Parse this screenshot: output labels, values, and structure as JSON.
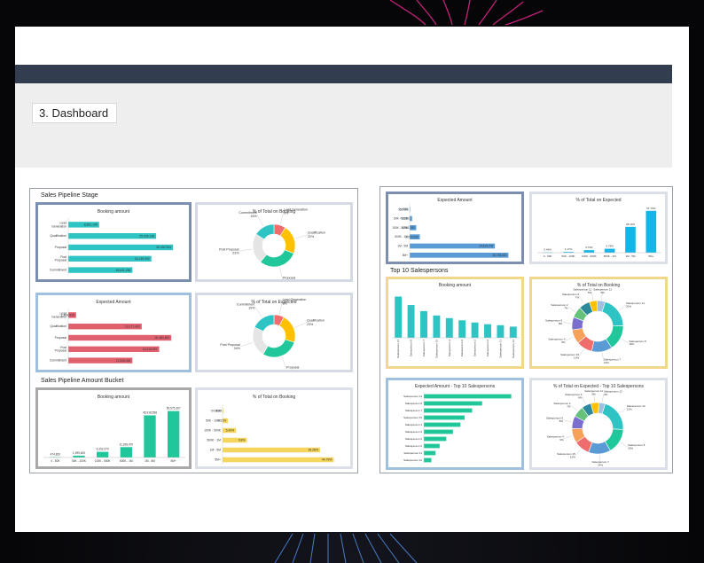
{
  "slide_title": "3. Dashboard",
  "colors": {
    "teal": "#2ec4c4",
    "red": "#e0606e",
    "green": "#1fc79a",
    "gold": "#f6d55c",
    "blue": "#5b9bd5",
    "cyan": "#14b6e8",
    "nav": "#323e4f"
  },
  "left": {
    "section1": "Sales Pipeline Stage",
    "section2": "Sales Pipeline Amount Bucket"
  },
  "right": {
    "section1": "Top 10 Salespersons"
  },
  "chart_data": [
    {
      "id": "booking_by_stage",
      "type": "bar",
      "orientation": "horizontal",
      "title": "Booking amount",
      "categories": [
        "Lead Generation",
        "Qualification",
        "Proposal",
        "Post Proposal",
        "Commitment"
      ],
      "values": [
        8961145,
        25535136,
        30432904,
        24145902,
        18641256
      ],
      "labels": [
        "8,961,145",
        "25,535,136",
        "30,432,904",
        "24,145,902",
        "18,641,256"
      ],
      "xlim": [
        0,
        34000000
      ]
    },
    {
      "id": "pct_booking_by_stage",
      "type": "pie",
      "donut": true,
      "title": "% of Total on Booking",
      "slices": [
        {
          "label": "Lead Generation",
          "pct": "9%",
          "value": 9,
          "color": "#f06d6d"
        },
        {
          "label": "Qualification",
          "pct": "22%",
          "value": 22,
          "color": "#ffc000"
        },
        {
          "label": "Proposal",
          "pct": "30%",
          "value": 30,
          "color": "#1fc79a"
        },
        {
          "label": "Post Proposal",
          "pct": "23%",
          "value": 23,
          "color": "#e5e5e5"
        },
        {
          "label": "Commitment",
          "pct": "16%",
          "value": 16,
          "color": "#2ec4c4"
        }
      ]
    },
    {
      "id": "expected_by_stage",
      "type": "bar",
      "orientation": "horizontal",
      "title": "Expected Amount",
      "categories": [
        "Lead Generation",
        "Qualification",
        "Proposal",
        "Post Proposal",
        "Commitment"
      ],
      "values": [
        1408615,
        13177402,
        18480363,
        16316997,
        11505045
      ],
      "labels": [
        "1,408,615",
        "13,177,402",
        "18,480,363",
        "16,316,997",
        "11,505,045"
      ],
      "xlim": [
        0,
        21000000
      ]
    },
    {
      "id": "pct_expected_by_stage",
      "type": "pie",
      "donut": true,
      "title": "% of Total on Expected",
      "slices": [
        {
          "label": "Lead Generation",
          "pct": "8%",
          "value": 8,
          "color": "#f06d6d"
        },
        {
          "label": "Qualification",
          "pct": "23%",
          "value": 23,
          "color": "#ffc000"
        },
        {
          "label": "Proposal",
          "pct": "30%",
          "value": 30,
          "color": "#1fc79a"
        },
        {
          "label": "Post Proposal",
          "pct": "24%",
          "value": 24,
          "color": "#e5e5e5"
        },
        {
          "label": "Commitment",
          "pct": "19%",
          "value": 19,
          "color": "#2ec4c4"
        }
      ]
    },
    {
      "id": "booking_by_bucket",
      "type": "bar",
      "orientation": "vertical",
      "title": "Booking amount",
      "categories": [
        "0 - 50K",
        "50K - 100K",
        "100K - 500K",
        "500K - 1M",
        "1M - 5M",
        "5M+"
      ],
      "values": [
        474820,
        1999620,
        6152370,
        11298470,
        45918558,
        50575307
      ],
      "labels": [
        "474,820",
        "1,999,620",
        "6,152,370",
        "11,298,470",
        "45,918,558",
        "50,575,307"
      ],
      "ylim": [
        0,
        56000000
      ]
    },
    {
      "id": "pct_booking_by_bucket",
      "type": "bar",
      "orientation": "horizontal",
      "title": "% of Total on Booking",
      "categories": [
        "0 - 50K",
        "50K - 100K",
        "100K - 500K",
        "500K - 1M",
        "1M - 5M",
        "5M+"
      ],
      "values": [
        0.41,
        2.15,
        5.43,
        9.8,
        39.28,
        44.79
      ],
      "labels": [
        "0.41%",
        "2.15%",
        "5.43%",
        "9.8%",
        "39.28%",
        "44.79%"
      ],
      "xlim": [
        0,
        50
      ]
    },
    {
      "id": "expected_by_bucket",
      "type": "bar",
      "orientation": "horizontal",
      "title": "Expected Amount",
      "categories": [
        "0 - 50K",
        "50K - 100K",
        "100K - 500K",
        "500K - 1M",
        "1M - 5M",
        "5M+"
      ],
      "values": [
        155183,
        713861,
        1916100,
        2976630,
        24814700,
        28738800
      ],
      "labels": [
        "155,183",
        "713,861",
        "1,916,100",
        "2,976,630",
        "24,814,700",
        "28,738,800"
      ],
      "xlim": [
        0,
        32000000
      ]
    },
    {
      "id": "pct_expected_by_bucket",
      "type": "bar",
      "orientation": "vertical",
      "title": "% of Total on Expected",
      "categories": [
        "0 - 50K",
        "50K - 100K",
        "100K - 500K",
        "500K - 1M",
        "1M - 5M",
        "5M+"
      ],
      "values": [
        0.46,
        1.17,
        3.73,
        5.78,
        38.13,
        61.76
      ],
      "labels": [
        "0.46%",
        "1.17%",
        "3.73%",
        "5.78%",
        "38.13%",
        "61.76%"
      ],
      "ylim": [
        0,
        68
      ]
    },
    {
      "id": "booking_top10",
      "type": "bar",
      "orientation": "vertical",
      "title": "Booking amount",
      "categories": [
        "Salesperson 14",
        "Salesperson 8",
        "Salesperson 7",
        "Salesperson 15",
        "Salesperson 4",
        "Salesperson 9",
        "Salesperson 2",
        "Salesperson 6",
        "Salesperson 11",
        "Salesperson 12"
      ],
      "values": [
        17000000,
        13500000,
        11000000,
        9200000,
        8100000,
        7200000,
        6300000,
        5600000,
        5200000,
        4600000
      ],
      "ylim": [
        0,
        19000000
      ]
    },
    {
      "id": "pct_booking_top10",
      "type": "pie",
      "donut": true,
      "title": "% of Total on Booking",
      "slices": [
        {
          "label": "Salesperson 14",
          "pct": "20%",
          "value": 20,
          "color": "#2ec4c4"
        },
        {
          "label": "Salesperson 8",
          "pct": "16%",
          "value": 16,
          "color": "#1fc79a"
        },
        {
          "label": "Salesperson 7",
          "pct": "13%",
          "value": 13,
          "color": "#5b9bd5"
        },
        {
          "label": "Salesperson 15",
          "pct": "10%",
          "value": 10,
          "color": "#f06d6d"
        },
        {
          "label": "Salesperson 4",
          "pct": "9%",
          "value": 9,
          "color": "#f6a15a"
        },
        {
          "label": "Salesperson 9",
          "pct": "8%",
          "value": 8,
          "color": "#7a6fcf"
        },
        {
          "label": "Salesperson 2",
          "pct": "7%",
          "value": 7,
          "color": "#66c27a"
        },
        {
          "label": "Salesperson 6",
          "pct": "7%",
          "value": 7,
          "color": "#2d8a9c"
        },
        {
          "label": "Salesperson 11",
          "pct": "5%",
          "value": 5,
          "color": "#ffc000"
        },
        {
          "label": "Salesperson 12",
          "pct": "5%",
          "value": 5,
          "color": "#9fc0df"
        }
      ]
    },
    {
      "id": "expected_top10",
      "type": "bar",
      "orientation": "horizontal",
      "title": "Expected Amount - Top 10 Salespersons",
      "categories": [
        "Salesperson 14",
        "Salesperson 8",
        "Salesperson 7",
        "Salesperson 15",
        "Salesperson 4",
        "Salesperson 9",
        "Salesperson 2",
        "Salesperson 6",
        "Salesperson 11",
        "Salesperson 12"
      ],
      "values": [
        10500000,
        7000000,
        5800000,
        4900000,
        4400000,
        3500000,
        2700000,
        1900000,
        1400000,
        900000
      ],
      "xlim": [
        0,
        11500000
      ]
    },
    {
      "id": "pct_expected_top10",
      "type": "pie",
      "donut": true,
      "title": "% of Total on Expected - Top 10 Salespersons",
      "slices": [
        {
          "label": "Salesperson 14",
          "pct": "21%",
          "value": 21,
          "color": "#2ec4c4"
        },
        {
          "label": "Salesperson 8",
          "pct": "16%",
          "value": 16,
          "color": "#1fc79a"
        },
        {
          "label": "Salesperson 7",
          "pct": "14%",
          "value": 14,
          "color": "#5b9bd5"
        },
        {
          "label": "Salesperson 15",
          "pct": "10%",
          "value": 10,
          "color": "#f06d6d"
        },
        {
          "label": "Salesperson 4",
          "pct": "9%",
          "value": 9,
          "color": "#f6a15a"
        },
        {
          "label": "Salesperson 9",
          "pct": "8%",
          "value": 8,
          "color": "#7a6fcf"
        },
        {
          "label": "Salesperson 2",
          "pct": "7%",
          "value": 7,
          "color": "#66c27a"
        },
        {
          "label": "Salesperson 6",
          "pct": "6%",
          "value": 6,
          "color": "#2d8a9c"
        },
        {
          "label": "Salesperson 11",
          "pct": "5%",
          "value": 5,
          "color": "#ffc000"
        },
        {
          "label": "Salesperson 12",
          "pct": "4%",
          "value": 4,
          "color": "#9fc0df"
        }
      ]
    }
  ]
}
